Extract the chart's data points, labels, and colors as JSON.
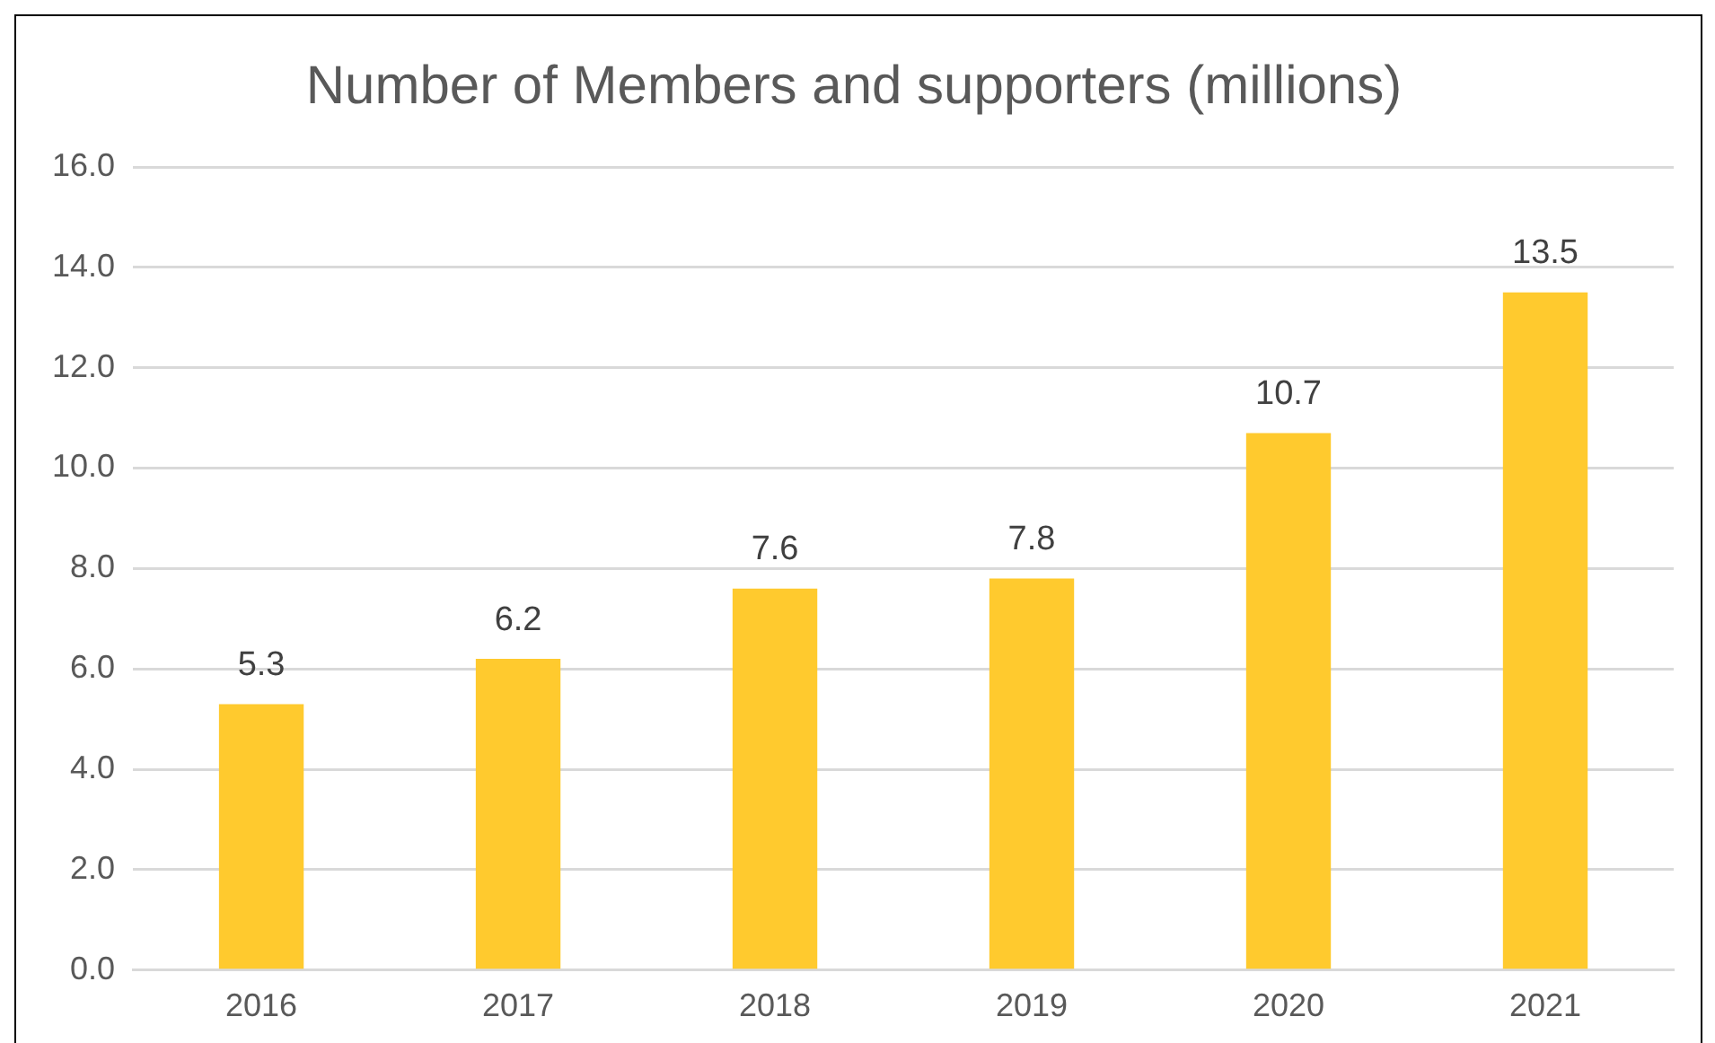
{
  "chart_data": {
    "type": "bar",
    "title": "Number of Members and supporters (millions)",
    "categories": [
      "2016",
      "2017",
      "2018",
      "2019",
      "2020",
      "2021"
    ],
    "values": [
      5.3,
      6.2,
      7.6,
      7.8,
      10.7,
      13.5
    ],
    "color": "#ffca2e",
    "ylim": [
      0,
      16
    ],
    "yticks": [
      {
        "value": 0,
        "label": "0.0"
      },
      {
        "value": 2,
        "label": "2.0"
      },
      {
        "value": 4,
        "label": "4.0"
      },
      {
        "value": 6,
        "label": "6.0"
      },
      {
        "value": 8,
        "label": "8.0"
      },
      {
        "value": 10,
        "label": "10.0"
      },
      {
        "value": 12,
        "label": "12.0"
      },
      {
        "value": 14,
        "label": "14.0"
      },
      {
        "value": 16,
        "label": "16.0"
      }
    ],
    "grid": "y",
    "data_labels": true
  }
}
